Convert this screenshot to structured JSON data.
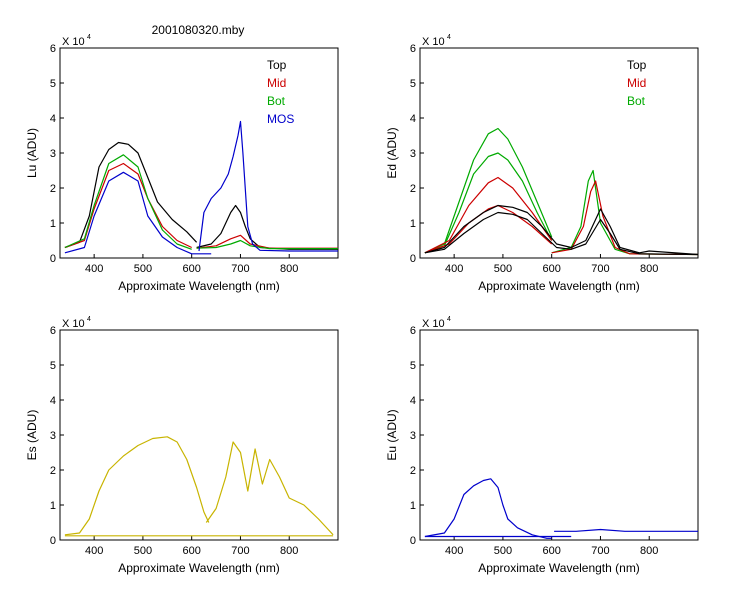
{
  "figure": {
    "title": "2001080320.mby"
  },
  "chart_data": [
    {
      "type": "line",
      "ylabel": "Lu  (ADU)",
      "xlabel": "Approximate Wavelength (nm)",
      "xlim": [
        330,
        900
      ],
      "ylim": [
        0,
        6
      ],
      "y_multiplier": "X 10",
      "y_multiplier_exp": "4",
      "xticks": [
        "400",
        "500",
        "600",
        "700",
        "800"
      ],
      "yticks": [
        "0",
        "1",
        "2",
        "3",
        "4",
        "5",
        "6"
      ],
      "legend_position": "top-right",
      "legend": [
        {
          "label": "Top",
          "color": "#000000"
        },
        {
          "label": "Mid",
          "color": "#cc0000"
        },
        {
          "label": "Bot",
          "color": "#00aa00"
        },
        {
          "label": "MOS",
          "color": "#0000cc"
        }
      ],
      "series": [
        {
          "color": "#000000",
          "x": [
            340,
            370,
            390,
            410,
            430,
            450,
            470,
            490,
            510,
            530,
            560,
            590,
            610
          ],
          "y": [
            0.3,
            0.45,
            1.2,
            2.6,
            3.1,
            3.3,
            3.25,
            3.0,
            2.3,
            1.6,
            1.1,
            0.75,
            0.45
          ]
        },
        {
          "color": "#000000",
          "x": [
            610,
            640,
            660,
            680,
            690,
            700,
            710,
            720,
            740,
            800,
            900
          ],
          "y": [
            0.3,
            0.4,
            0.7,
            1.3,
            1.5,
            1.3,
            0.9,
            0.55,
            0.3,
            0.25,
            0.25
          ]
        },
        {
          "color": "#cc0000",
          "x": [
            340,
            380,
            400,
            430,
            460,
            490,
            510,
            540,
            570,
            600
          ],
          "y": [
            0.3,
            0.5,
            1.4,
            2.5,
            2.7,
            2.4,
            1.7,
            0.9,
            0.5,
            0.3
          ]
        },
        {
          "color": "#cc0000",
          "x": [
            610,
            650,
            680,
            700,
            720,
            760,
            900
          ],
          "y": [
            0.28,
            0.35,
            0.55,
            0.65,
            0.4,
            0.28,
            0.28
          ]
        },
        {
          "color": "#00aa00",
          "x": [
            340,
            380,
            400,
            430,
            460,
            490,
            510,
            540,
            570,
            600
          ],
          "y": [
            0.3,
            0.55,
            1.5,
            2.7,
            2.95,
            2.6,
            1.7,
            0.8,
            0.4,
            0.25
          ]
        },
        {
          "color": "#00aa00",
          "x": [
            610,
            650,
            680,
            700,
            720,
            760,
            900
          ],
          "y": [
            0.28,
            0.3,
            0.4,
            0.5,
            0.35,
            0.27,
            0.27
          ]
        },
        {
          "color": "#0000cc",
          "x": [
            340,
            380,
            400,
            430,
            460,
            490,
            510,
            540,
            570,
            600,
            640
          ],
          "y": [
            0.15,
            0.3,
            1.2,
            2.2,
            2.45,
            2.2,
            1.2,
            0.6,
            0.3,
            0.12,
            0.12
          ]
        },
        {
          "color": "#0000cc",
          "x": [
            615,
            625,
            640,
            660,
            675,
            685,
            695,
            700,
            705,
            715,
            725,
            740,
            800,
            900
          ],
          "y": [
            0.2,
            1.3,
            1.7,
            2.0,
            2.4,
            2.9,
            3.5,
            3.9,
            3.0,
            0.9,
            0.4,
            0.22,
            0.2,
            0.2
          ]
        }
      ]
    },
    {
      "type": "line",
      "ylabel": "Ed  (ADU)",
      "xlabel": "Approximate Wavelength (nm)",
      "xlim": [
        330,
        900
      ],
      "ylim": [
        0,
        6
      ],
      "y_multiplier": "X 10",
      "y_multiplier_exp": "4",
      "xticks": [
        "400",
        "500",
        "600",
        "700",
        "800"
      ],
      "yticks": [
        "0",
        "1",
        "2",
        "3",
        "4",
        "5",
        "6"
      ],
      "legend_position": "top-right",
      "legend": [
        {
          "label": "Top",
          "color": "#000000"
        },
        {
          "label": "Mid",
          "color": "#cc0000"
        },
        {
          "label": "Bot",
          "color": "#00aa00"
        }
      ],
      "series": [
        {
          "color": "#00aa00",
          "x": [
            340,
            380,
            410,
            440,
            470,
            490,
            510,
            540,
            570,
            600
          ],
          "y": [
            0.15,
            0.4,
            1.6,
            2.8,
            3.55,
            3.7,
            3.4,
            2.6,
            1.6,
            0.6
          ]
        },
        {
          "color": "#00aa00",
          "x": [
            340,
            380,
            410,
            440,
            470,
            490,
            510,
            540,
            570,
            600
          ],
          "y": [
            0.15,
            0.35,
            1.3,
            2.4,
            2.9,
            3.0,
            2.8,
            2.2,
            1.3,
            0.5
          ]
        },
        {
          "color": "#00aa00",
          "x": [
            600,
            640,
            660,
            675,
            685,
            700,
            730,
            760,
            900
          ],
          "y": [
            0.15,
            0.3,
            0.9,
            2.2,
            2.5,
            1.0,
            0.25,
            0.12,
            0.1
          ]
        },
        {
          "color": "#cc0000",
          "x": [
            340,
            390,
            430,
            470,
            490,
            520,
            560,
            600
          ],
          "y": [
            0.15,
            0.5,
            1.5,
            2.15,
            2.3,
            2.0,
            1.3,
            0.5
          ]
        },
        {
          "color": "#cc0000",
          "x": [
            340,
            390,
            430,
            470,
            490,
            520,
            560,
            600
          ],
          "y": [
            0.15,
            0.4,
            1.0,
            1.4,
            1.5,
            1.3,
            0.9,
            0.4
          ]
        },
        {
          "color": "#cc0000",
          "x": [
            600,
            640,
            665,
            680,
            690,
            705,
            730,
            760,
            900
          ],
          "y": [
            0.15,
            0.25,
            0.9,
            1.9,
            2.2,
            1.2,
            0.3,
            0.12,
            0.1
          ]
        },
        {
          "color": "#000000",
          "x": [
            340,
            380,
            420,
            460,
            490,
            520,
            550,
            580,
            610,
            640,
            670,
            700,
            720,
            740,
            780,
            800,
            900
          ],
          "y": [
            0.15,
            0.3,
            0.9,
            1.3,
            1.5,
            1.45,
            1.3,
            0.9,
            0.4,
            0.3,
            0.5,
            1.4,
            0.9,
            0.3,
            0.15,
            0.2,
            0.1
          ]
        },
        {
          "color": "#000000",
          "x": [
            340,
            380,
            420,
            460,
            490,
            520,
            550,
            580,
            610,
            640,
            670,
            700,
            720,
            740,
            780,
            900
          ],
          "y": [
            0.15,
            0.25,
            0.7,
            1.1,
            1.3,
            1.25,
            1.1,
            0.7,
            0.3,
            0.25,
            0.4,
            1.1,
            0.7,
            0.25,
            0.12,
            0.1
          ]
        }
      ]
    },
    {
      "type": "line",
      "ylabel": "Es  (ADU)",
      "xlabel": "Approximate Wavelength (nm)",
      "xlim": [
        330,
        900
      ],
      "ylim": [
        0,
        6
      ],
      "y_multiplier": "X 10",
      "y_multiplier_exp": "4",
      "xticks": [
        "400",
        "500",
        "600",
        "700",
        "800"
      ],
      "yticks": [
        "0",
        "1",
        "2",
        "3",
        "4",
        "5",
        "6"
      ],
      "legend": [],
      "series": [
        {
          "color": "#c8b400",
          "x": [
            340,
            370,
            390,
            410,
            430,
            460,
            490,
            520,
            550,
            570,
            590,
            610,
            625,
            635
          ],
          "y": [
            0.15,
            0.2,
            0.6,
            1.4,
            2.0,
            2.4,
            2.7,
            2.9,
            2.95,
            2.8,
            2.3,
            1.5,
            0.8,
            0.5
          ]
        },
        {
          "color": "#c8b400",
          "x": [
            630,
            650,
            670,
            685,
            700,
            715,
            730,
            745,
            760,
            780,
            800,
            830,
            860,
            880,
            890
          ],
          "y": [
            0.5,
            0.9,
            1.8,
            2.8,
            2.5,
            1.4,
            2.6,
            1.6,
            2.3,
            1.8,
            1.2,
            1.0,
            0.6,
            0.3,
            0.15
          ]
        },
        {
          "color": "#c8b400",
          "x": [
            340,
            890
          ],
          "y": [
            0.12,
            0.12
          ]
        }
      ]
    },
    {
      "type": "line",
      "ylabel": "Eu  (ADU)",
      "xlabel": "Approximate Wavelength (nm)",
      "xlim": [
        330,
        900
      ],
      "ylim": [
        0,
        6
      ],
      "y_multiplier": "X 10",
      "y_multiplier_exp": "4",
      "xticks": [
        "400",
        "500",
        "600",
        "700",
        "800"
      ],
      "yticks": [
        "0",
        "1",
        "2",
        "3",
        "4",
        "5",
        "6"
      ],
      "legend": [],
      "series": [
        {
          "color": "#0000cc",
          "x": [
            340,
            380,
            400,
            420,
            440,
            460,
            475,
            490,
            500,
            510,
            530,
            560,
            590,
            600
          ],
          "y": [
            0.1,
            0.2,
            0.6,
            1.3,
            1.55,
            1.7,
            1.75,
            1.5,
            1.0,
            0.6,
            0.35,
            0.15,
            0.05,
            0.05
          ]
        },
        {
          "color": "#0000cc",
          "x": [
            340,
            640
          ],
          "y": [
            0.1,
            0.1
          ]
        },
        {
          "color": "#0000cc",
          "x": [
            605,
            650,
            700,
            750,
            800,
            900
          ],
          "y": [
            0.25,
            0.25,
            0.3,
            0.25,
            0.25,
            0.25
          ]
        }
      ]
    }
  ]
}
